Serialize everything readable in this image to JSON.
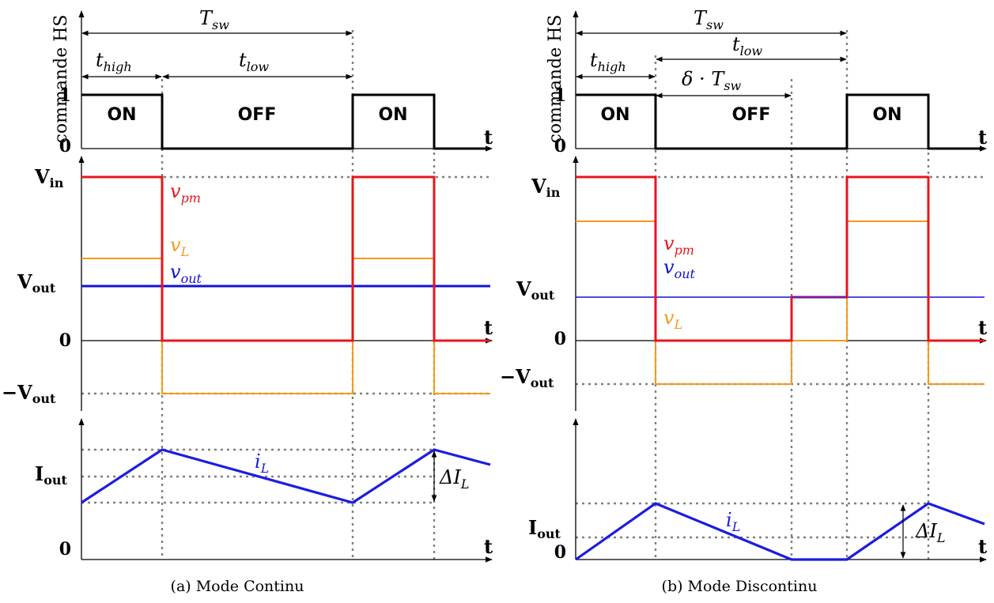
{
  "colors": {
    "vpm": "#e8161c",
    "vL": "#f39b1c",
    "vout": "#1111dd",
    "iL": "#1c1ce0",
    "cmd": "#000000",
    "grid": "#808080"
  },
  "panels": [
    {
      "id": "continu",
      "caption": "(a) Mode Continu",
      "cmd_axis_label": "commande HS",
      "labels": {
        "Tsw": "T",
        "Tsw_sub": "sw",
        "thigh": "t",
        "thigh_sub": "high",
        "tlow": "t",
        "tlow_sub": "low",
        "one": "1",
        "zero": "0",
        "t": "t",
        "on1": "ON",
        "off": "OFF",
        "on2": "ON",
        "Vin": "V",
        "Vin_sub": "in",
        "Vout": "V",
        "Vout_sub": "out",
        "mVout": "−V",
        "mVout_sub": "out",
        "zero_v": "0",
        "vpm": "v",
        "vpm_sub": "pm",
        "vL": "v",
        "vL_sub": "L",
        "vout": "v",
        "vout_sub": "out",
        "Iout": "I",
        "Iout_sub": "out",
        "zero_i": "0",
        "iL": "i",
        "iL_sub": "L",
        "dIL": "ΔI",
        "dIL_sub": "L"
      }
    },
    {
      "id": "discontinu",
      "caption": "(b) Mode Discontinu",
      "cmd_axis_label": "commande HS",
      "labels": {
        "Tsw": "T",
        "Tsw_sub": "sw",
        "thigh": "t",
        "thigh_sub": "high",
        "tlow": "t",
        "tlow_sub": "low",
        "delta": "δ · T",
        "delta_sub": "sw",
        "one": "1",
        "zero": "0",
        "t": "t",
        "on1": "ON",
        "off": "OFF",
        "on2": "ON",
        "Vin": "V",
        "Vin_sub": "in",
        "Vout": "V",
        "Vout_sub": "out",
        "mVout": "−V",
        "mVout_sub": "out",
        "zero_v": "0",
        "vpm": "v",
        "vpm_sub": "pm",
        "vout": "v",
        "vout_sub": "out",
        "vL": "v",
        "vL_sub": "L",
        "Iout": "I",
        "Iout_sub": "out",
        "zero_i": "0",
        "iL": "i",
        "iL_sub": "L",
        "dIL": "ΔI",
        "dIL_sub": "L"
      }
    }
  ]
}
